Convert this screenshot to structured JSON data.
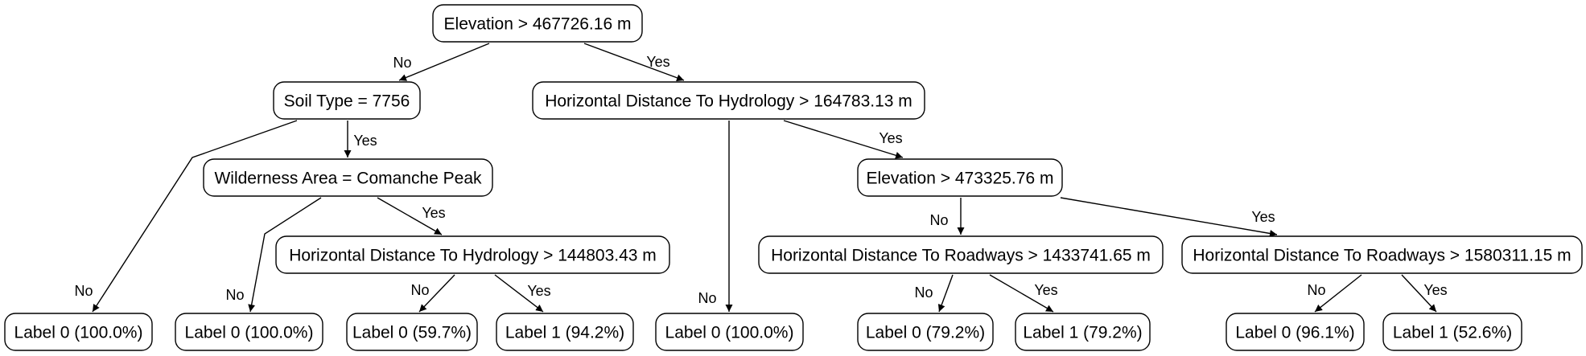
{
  "tree": {
    "nodes": [
      {
        "id": "root",
        "label": "Elevation > 467726.16 m"
      },
      {
        "id": "soil",
        "label": "Soil Type = 7756"
      },
      {
        "id": "hydro1",
        "label": "Horizontal Distance To Hydrology > 164783.13 m"
      },
      {
        "id": "wild",
        "label": "Wilderness Area = Comanche Peak"
      },
      {
        "id": "elev2",
        "label": "Elevation > 473325.76 m"
      },
      {
        "id": "hydro2",
        "label": "Horizontal Distance To Hydrology > 144803.43 m"
      },
      {
        "id": "road1",
        "label": "Horizontal Distance To Roadways > 1433741.65 m"
      },
      {
        "id": "road2",
        "label": "Horizontal Distance To Roadways > 1580311.15 m"
      },
      {
        "id": "leaf1",
        "label": "Label 0 (100.0%)"
      },
      {
        "id": "leaf2",
        "label": "Label 0 (100.0%)"
      },
      {
        "id": "leaf3",
        "label": "Label 0 (59.7%)"
      },
      {
        "id": "leaf4",
        "label": "Label 1 (94.2%)"
      },
      {
        "id": "leaf5",
        "label": "Label 0 (100.0%)"
      },
      {
        "id": "leaf6",
        "label": "Label 0 (79.2%)"
      },
      {
        "id": "leaf7",
        "label": "Label 1 (79.2%)"
      },
      {
        "id": "leaf8",
        "label": "Label 0 (96.1%)"
      },
      {
        "id": "leaf9",
        "label": "Label 1 (52.6%)"
      }
    ],
    "edges": [
      {
        "from": "root",
        "to": "soil",
        "label": "No"
      },
      {
        "from": "root",
        "to": "hydro1",
        "label": "Yes"
      },
      {
        "from": "soil",
        "to": "leaf1",
        "label": "No"
      },
      {
        "from": "soil",
        "to": "wild",
        "label": "Yes"
      },
      {
        "from": "wild",
        "to": "leaf2",
        "label": "No"
      },
      {
        "from": "wild",
        "to": "hydro2",
        "label": "Yes"
      },
      {
        "from": "hydro2",
        "to": "leaf3",
        "label": "No"
      },
      {
        "from": "hydro2",
        "to": "leaf4",
        "label": "Yes"
      },
      {
        "from": "hydro1",
        "to": "leaf5",
        "label": "No"
      },
      {
        "from": "hydro1",
        "to": "elev2",
        "label": "Yes"
      },
      {
        "from": "elev2",
        "to": "road1",
        "label": "No"
      },
      {
        "from": "elev2",
        "to": "road2",
        "label": "Yes"
      },
      {
        "from": "road1",
        "to": "leaf6",
        "label": "No"
      },
      {
        "from": "road1",
        "to": "leaf7",
        "label": "Yes"
      },
      {
        "from": "road2",
        "to": "leaf8",
        "label": "No"
      },
      {
        "from": "road2",
        "to": "leaf9",
        "label": "Yes"
      }
    ]
  }
}
